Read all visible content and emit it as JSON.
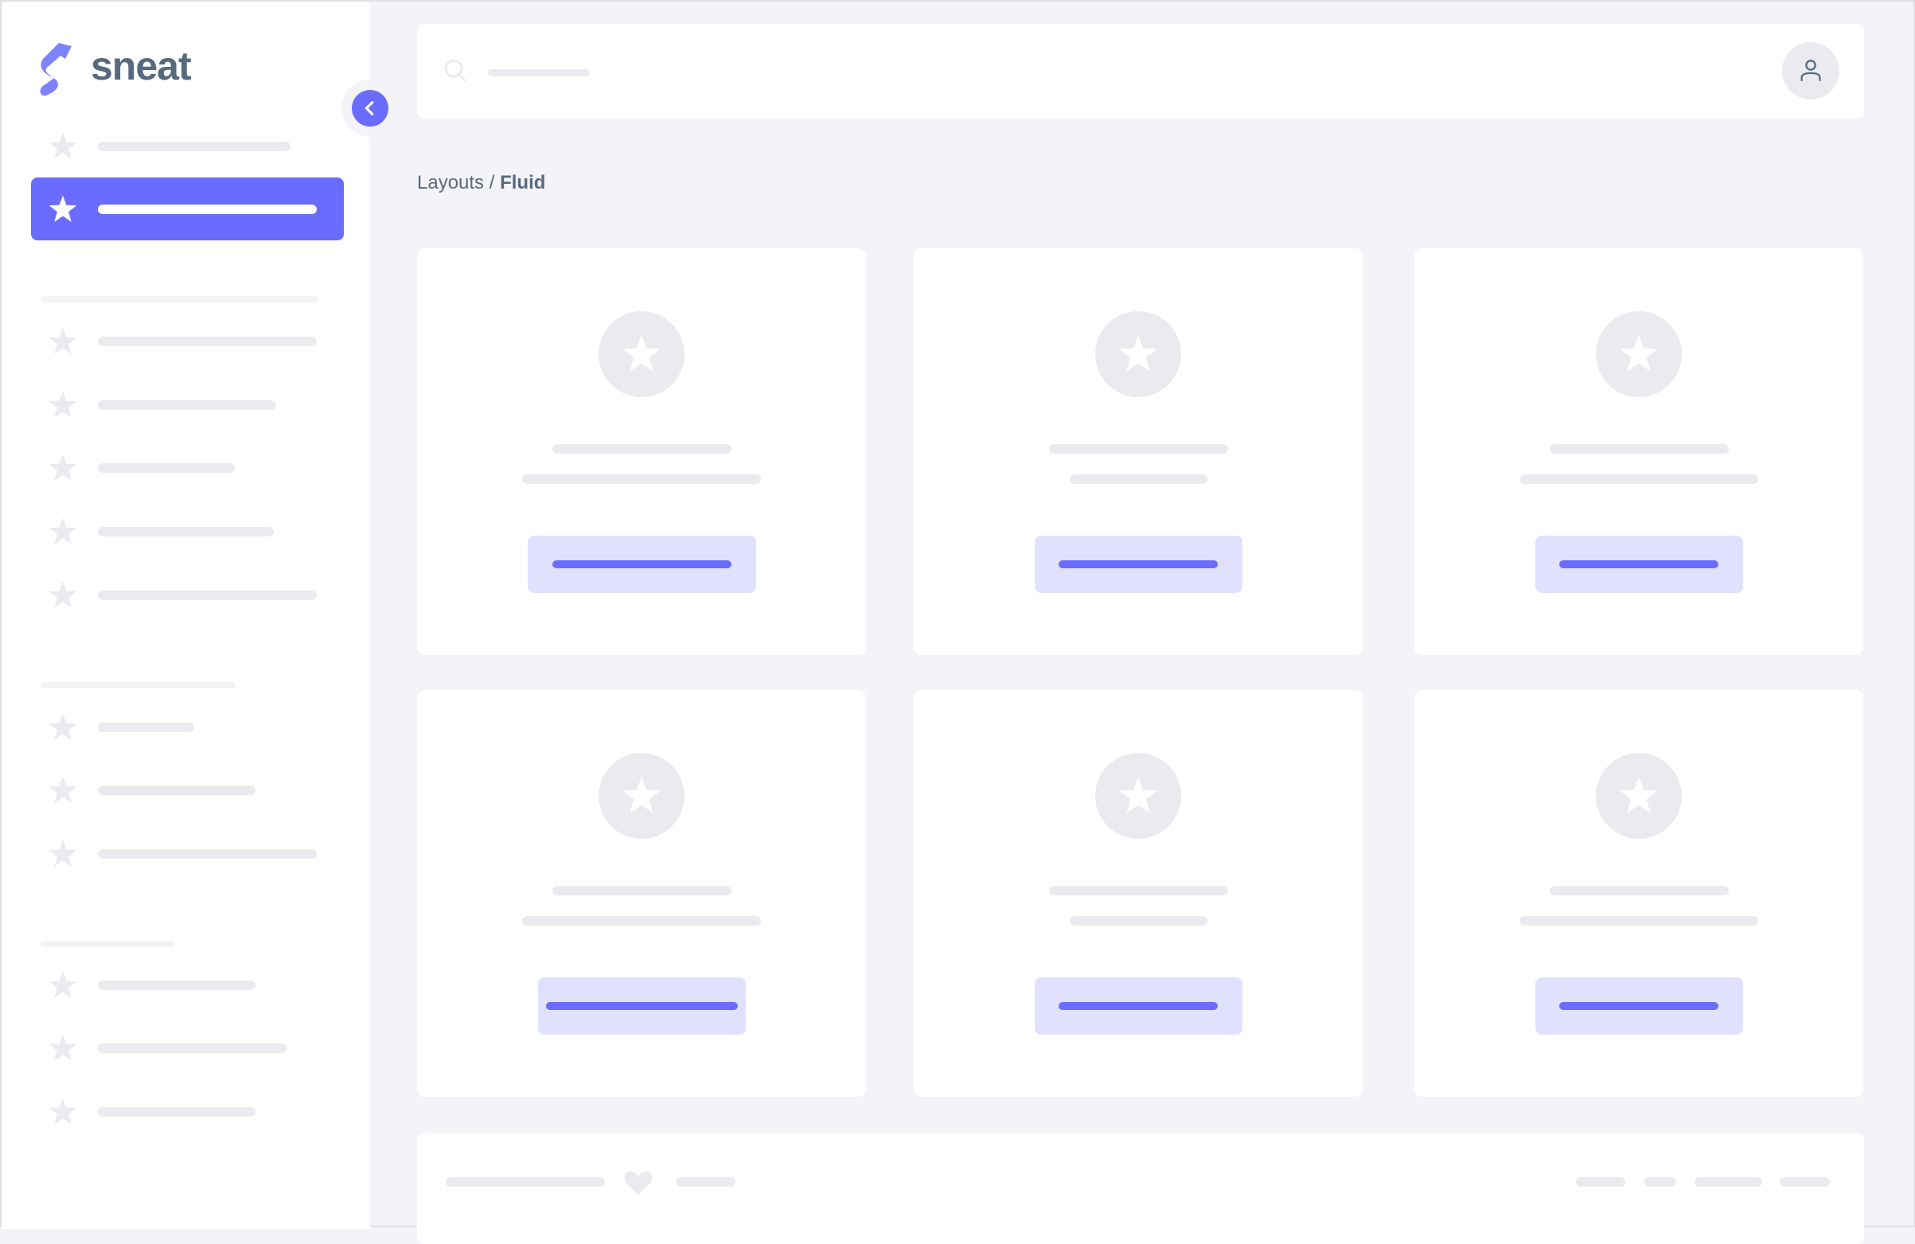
{
  "brand": {
    "name": "sneat",
    "logo_icon": "sneat-s-logo"
  },
  "breadcrumb": {
    "parent": "Layouts",
    "separator": " / ",
    "current": "Fluid"
  },
  "icons": {
    "nav": "star-icon",
    "toggle": "chevron-left-icon",
    "search": "search-icon",
    "user": "user-icon",
    "footer": "heart-icon"
  },
  "colors": {
    "primary": "#696cff",
    "primary_light": "#e1e1ff",
    "background": "#f4f4f8",
    "skeleton": "#ebebef",
    "text": "#566a7f"
  }
}
